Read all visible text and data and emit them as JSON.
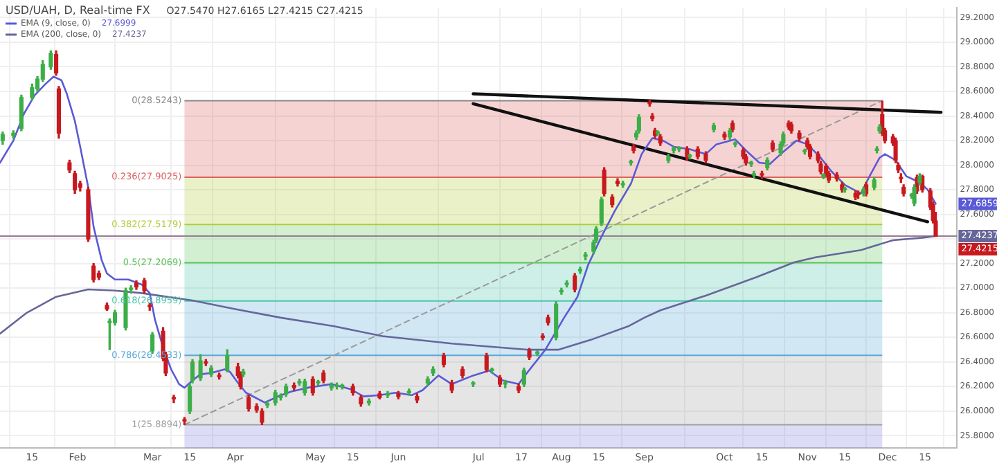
{
  "chart_data": {
    "type": "candlestick",
    "title": "USD/UAH, D, Real-time FX",
    "xlim": [
      "--01-03",
      "--12-27"
    ],
    "xticks": [
      {
        "value": "--01-15",
        "label": "15"
      },
      {
        "value": "--02-01",
        "label": "Feb"
      },
      {
        "value": "--03-01",
        "label": "Mar"
      },
      {
        "value": "--03-15",
        "label": "15"
      },
      {
        "value": "--04-01",
        "label": "Apr"
      },
      {
        "value": "--05-01",
        "label": "May"
      },
      {
        "value": "--05-15",
        "label": "15"
      },
      {
        "value": "--06-01",
        "label": "Jun"
      },
      {
        "value": "--07-01",
        "label": "Jul"
      },
      {
        "value": "--07-17",
        "label": "17"
      },
      {
        "value": "--08-01",
        "label": "Aug"
      },
      {
        "value": "--08-15",
        "label": "15"
      },
      {
        "value": "--09-01",
        "label": "Sep"
      },
      {
        "value": "--10-01",
        "label": "Oct"
      },
      {
        "value": "--10-15",
        "label": "15"
      },
      {
        "value": "--11-01",
        "label": "Nov"
      },
      {
        "value": "--11-15",
        "label": "15"
      },
      {
        "value": "--12-01",
        "label": "Dec"
      },
      {
        "value": "--12-15",
        "label": "15"
      }
    ],
    "ylim": [
      25.7,
      29.28
    ],
    "yticks": [
      {
        "value": 25.8,
        "label": "25.8000"
      },
      {
        "value": 26,
        "label": "26.0000"
      },
      {
        "value": 26.2,
        "label": "26.2000"
      },
      {
        "value": 26.4,
        "label": "26.4000"
      },
      {
        "value": 26.6,
        "label": "26.6000"
      },
      {
        "value": 26.8,
        "label": "26.8000"
      },
      {
        "value": 27,
        "label": "27.0000"
      },
      {
        "value": 27.2,
        "label": "27.2000"
      },
      {
        "value": 27.4,
        "label": null
      },
      {
        "value": 27.6,
        "label": "27.6000"
      },
      {
        "value": 27.8,
        "label": "27.8000"
      },
      {
        "value": 28,
        "label": "28.0000"
      },
      {
        "value": 28.2,
        "label": "28.2000"
      },
      {
        "value": 28.4,
        "label": "28.4000"
      },
      {
        "value": 28.6,
        "label": "28.6000"
      },
      {
        "value": 28.8,
        "label": "28.8000"
      },
      {
        "value": 29,
        "label": "29.0000"
      },
      {
        "value": 29.2,
        "label": "29.2000"
      }
    ],
    "grid": true,
    "legend": "top left",
    "annotations": [
      "O27.5470 H27.6165 L27.4215 C27.4215",
      "27.6999",
      "27.4237",
      {
        "text": "27.6859",
        "x": "--12-19",
        "y": 27.6859
      },
      {
        "text": "27.4237",
        "x": "--12-19",
        "y": 27.4237
      },
      {
        "text": "27.4215",
        "x": "--12-19",
        "y": 27.4215
      }
    ],
    "ref_lines": [
      {
        "axis": "y",
        "value": 27.4237,
        "color": "#9a7a90"
      }
    ],
    "bands": [
      {
        "axis": "y",
        "from": 28.5243,
        "to": 27.9025,
        "label": "0(28.5243)",
        "color": "#e06060"
      },
      {
        "axis": "y",
        "from": 27.9025,
        "to": 27.5179,
        "label": "0.236(27.9025)",
        "color": "#b5cc3a"
      },
      {
        "axis": "y",
        "from": 27.5179,
        "to": 27.2069,
        "label": "0.382(27.5179)",
        "color": "#5cc45c"
      },
      {
        "axis": "y",
        "from": 27.2069,
        "to": 26.8959,
        "label": "0.5(27.2069)",
        "color": "#4cc4a8"
      },
      {
        "axis": "y",
        "from": 26.8959,
        "to": 26.4533,
        "label": "0.618(26.8959)",
        "color": "#5aa8d8"
      },
      {
        "axis": "y",
        "from": 26.4533,
        "to": 25.8894,
        "label": "0.786(26.4533)",
        "color": "#a0a0a0"
      },
      {
        "axis": "y",
        "from": 25.8894,
        "to": 25.7,
        "label": "1(25.8894)",
        "color": "#8080e0"
      }
    ],
    "series": [
      {
        "type": "candlestick",
        "color": "#3cae48",
        "x": [
          "--01-04",
          "--01-08",
          "--01-11",
          "--01-15",
          "--01-17",
          "--01-19",
          "--01-22",
          "--02-13",
          "--02-15",
          "--02-19",
          "--02-21",
          "--03-01",
          "--03-15",
          "--03-16",
          "--03-19",
          "--03-23",
          "--03-29",
          "--04-04",
          "--04-13",
          "--04-16",
          "--04-18",
          "--04-20",
          "--04-25",
          "--04-27",
          "--05-02",
          "--05-07",
          "--05-09",
          "--05-11",
          "--05-21",
          "--05-28",
          "--06-05",
          "--06-12",
          "--06-14",
          "--06-29",
          "--07-06",
          "--07-11",
          "--07-18",
          "--07-23",
          "--07-30",
          "--08-01",
          "--08-03",
          "--08-08",
          "--08-10",
          "--08-13",
          "--08-14",
          "--08-16",
          "--08-24",
          "--08-27",
          "--08-29",
          "--08-30",
          "--09-06",
          "--09-10",
          "--09-12",
          "--09-14",
          "--09-18",
          "--09-27",
          "--10-03",
          "--10-05",
          "--10-11",
          "--10-12",
          "--10-17",
          "--10-22",
          "--10-23",
          "--10-31",
          "--11-07",
          "--11-15",
          "--11-22",
          "--11-26",
          "--11-27",
          "--11-28",
          "--12-10",
          "--12-11",
          "--12-13"
        ],
        "ohlc": [
          [
            28.2,
            28.27,
            28.17,
            28.25
          ],
          [
            28.24,
            28.28,
            28.22,
            28.26
          ],
          [
            28.3,
            28.57,
            28.28,
            28.55
          ],
          [
            28.55,
            28.66,
            28.53,
            28.63
          ],
          [
            28.62,
            28.72,
            28.6,
            28.7
          ],
          [
            28.7,
            28.85,
            28.68,
            28.82
          ],
          [
            28.8,
            28.93,
            28.78,
            28.91
          ],
          [
            26.72,
            26.75,
            26.5,
            26.73
          ],
          [
            26.72,
            26.82,
            26.7,
            26.8
          ],
          [
            26.68,
            27.0,
            26.66,
            26.98
          ],
          [
            26.99,
            27.02,
            26.96,
            27.0
          ],
          [
            26.49,
            26.64,
            26.47,
            26.62
          ],
          [
            26.0,
            26.22,
            25.98,
            26.2
          ],
          [
            26.25,
            26.42,
            26.23,
            26.4
          ],
          [
            26.27,
            26.46,
            26.25,
            26.41
          ],
          [
            26.3,
            26.37,
            26.28,
            26.35
          ],
          [
            26.34,
            26.5,
            26.32,
            26.45
          ],
          [
            26.3,
            26.34,
            26.28,
            26.32
          ],
          [
            26.05,
            26.08,
            26.03,
            26.06
          ],
          [
            26.07,
            26.17,
            26.05,
            26.15
          ],
          [
            26.11,
            26.14,
            26.09,
            26.12
          ],
          [
            26.14,
            26.22,
            26.12,
            26.2
          ],
          [
            26.23,
            26.26,
            26.21,
            26.24
          ],
          [
            26.15,
            26.26,
            26.13,
            26.24
          ],
          [
            26.23,
            26.25,
            26.21,
            26.23
          ],
          [
            26.19,
            26.23,
            26.17,
            26.21
          ],
          [
            26.2,
            26.23,
            26.18,
            26.21
          ],
          [
            26.2,
            26.22,
            26.18,
            26.2
          ],
          [
            26.07,
            26.1,
            26.05,
            26.08
          ],
          [
            26.13,
            26.16,
            26.11,
            26.14
          ],
          [
            26.15,
            26.18,
            26.13,
            26.16
          ],
          [
            26.23,
            26.28,
            26.21,
            26.26
          ],
          [
            26.31,
            26.36,
            26.29,
            26.34
          ],
          [
            26.22,
            26.24,
            26.2,
            26.22
          ],
          [
            26.33,
            26.35,
            26.31,
            26.33
          ],
          [
            26.22,
            26.25,
            26.19,
            26.22
          ],
          [
            26.22,
            26.35,
            26.2,
            26.33
          ],
          [
            26.47,
            26.49,
            26.45,
            26.47
          ],
          [
            26.6,
            26.89,
            26.58,
            26.87
          ],
          [
            26.97,
            27.0,
            26.95,
            26.98
          ],
          [
            27.03,
            27.06,
            27.01,
            27.04
          ],
          [
            27.14,
            27.17,
            27.12,
            27.15
          ],
          [
            27.26,
            27.29,
            27.23,
            27.26
          ],
          [
            27.3,
            27.39,
            27.28,
            27.37
          ],
          [
            27.39,
            27.5,
            27.37,
            27.48
          ],
          [
            27.53,
            27.74,
            27.51,
            27.72
          ],
          [
            27.84,
            27.87,
            27.82,
            27.85
          ],
          [
            28.02,
            28.04,
            28.0,
            28.02
          ],
          [
            28.23,
            28.28,
            28.21,
            28.26
          ],
          [
            28.28,
            28.41,
            28.26,
            28.39
          ],
          [
            28.26,
            28.28,
            28.24,
            28.26
          ],
          [
            28.04,
            28.09,
            28.02,
            28.07
          ],
          [
            28.12,
            28.15,
            28.1,
            28.14
          ],
          [
            28.13,
            28.15,
            28.11,
            28.13
          ],
          [
            28.07,
            28.09,
            28.05,
            28.07
          ],
          [
            28.29,
            28.34,
            28.27,
            28.32
          ],
          [
            28.23,
            28.3,
            28.21,
            28.28
          ],
          [
            28.17,
            28.19,
            28.15,
            28.17
          ],
          [
            28.01,
            28.03,
            27.99,
            28.01
          ],
          [
            27.92,
            27.95,
            27.9,
            27.93
          ],
          [
            27.98,
            28.06,
            27.96,
            28.04
          ],
          [
            28.1,
            28.19,
            28.08,
            28.17
          ],
          [
            28.18,
            28.27,
            28.16,
            28.25
          ],
          [
            28.11,
            28.13,
            28.09,
            28.11
          ],
          [
            27.91,
            27.93,
            27.89,
            27.91
          ],
          [
            27.8,
            27.82,
            27.78,
            27.8
          ],
          [
            27.77,
            27.82,
            27.75,
            27.8
          ],
          [
            27.82,
            27.9,
            27.8,
            27.88
          ],
          [
            28.12,
            28.15,
            28.1,
            28.13
          ],
          [
            28.28,
            28.33,
            28.26,
            28.31
          ],
          [
            27.75,
            27.77,
            27.73,
            27.75
          ],
          [
            27.69,
            27.84,
            27.67,
            27.82
          ],
          [
            27.86,
            27.93,
            27.84,
            27.91
          ]
        ]
      },
      {
        "type": "candlestick",
        "color": "#c8191e",
        "x": [
          "--01-24",
          "--01-25",
          "--01-29",
          "--01-31",
          "--02-02",
          "--02-05",
          "--02-07",
          "--02-09",
          "--02-12",
          "--02-23",
          "--02-26",
          "--02-28",
          "--03-05",
          "--03-06",
          "--03-09",
          "--03-13",
          "--03-21",
          "--03-26",
          "--04-02",
          "--04-03",
          "--04-06",
          "--04-09",
          "--04-11",
          "--04-23",
          "--04-30",
          "--05-04",
          "--05-15",
          "--05-18",
          "--05-25",
          "--06-01",
          "--06-08",
          "--06-18",
          "--06-21",
          "--06-25",
          "--07-04",
          "--07-09",
          "--07-16",
          "--07-20",
          "--07-25",
          "--07-27",
          "--08-06",
          "--08-17",
          "--08-20",
          "--08-22",
          "--08-28",
          "--09-03",
          "--09-04",
          "--09-05",
          "--09-07",
          "--09-17",
          "--09-21",
          "--09-24",
          "--10-01",
          "--10-04",
          "--10-08",
          "--10-09",
          "--10-15",
          "--10-19",
          "--10-25",
          "--10-26",
          "--10-29",
          "--11-01",
          "--11-02",
          "--11-05",
          "--11-06",
          "--11-08",
          "--11-09",
          "--11-12",
          "--11-14",
          "--11-19",
          "--11-20",
          "--11-23",
          "--11-29",
          "--11-30",
          "--12-03",
          "--12-04",
          "--12-05",
          "--12-06",
          "--12-07",
          "--12-12",
          "--12-14",
          "--12-17",
          "--12-18",
          "--12-19"
        ],
        "ohlc": [
          [
            28.9,
            28.93,
            28.73,
            28.75
          ],
          [
            28.62,
            28.64,
            28.22,
            28.26
          ],
          [
            28.02,
            28.04,
            27.94,
            27.96
          ],
          [
            27.93,
            27.95,
            27.77,
            27.8
          ],
          [
            27.85,
            27.87,
            27.79,
            27.82
          ],
          [
            27.8,
            27.82,
            27.38,
            27.4
          ],
          [
            27.18,
            27.2,
            27.05,
            27.07
          ],
          [
            27.12,
            27.14,
            27.07,
            27.09
          ],
          [
            26.86,
            26.88,
            26.82,
            26.83
          ],
          [
            27.04,
            27.06,
            26.99,
            27.01
          ],
          [
            27.06,
            27.08,
            26.96,
            26.98
          ],
          [
            26.86,
            26.88,
            26.82,
            26.85
          ],
          [
            26.65,
            26.68,
            26.41,
            26.43
          ],
          [
            26.46,
            26.48,
            26.29,
            26.31
          ],
          [
            26.1,
            26.13,
            26.07,
            26.1
          ],
          [
            25.92,
            25.95,
            25.89,
            25.92
          ],
          [
            26.4,
            26.42,
            26.37,
            26.39
          ],
          [
            26.29,
            26.31,
            26.26,
            26.28
          ],
          [
            26.36,
            26.39,
            26.27,
            26.29
          ],
          [
            26.3,
            26.32,
            26.18,
            26.2
          ],
          [
            26.11,
            26.13,
            26.0,
            26.02
          ],
          [
            26.04,
            26.06,
            25.99,
            26.01
          ],
          [
            26.0,
            26.02,
            25.89,
            25.91
          ],
          [
            26.21,
            26.23,
            26.17,
            26.19
          ],
          [
            26.26,
            26.28,
            26.13,
            26.15
          ],
          [
            26.31,
            26.33,
            26.23,
            26.25
          ],
          [
            26.2,
            26.22,
            26.13,
            26.15
          ],
          [
            26.11,
            26.13,
            26.04,
            26.06
          ],
          [
            26.14,
            26.16,
            26.1,
            26.11
          ],
          [
            26.14,
            26.16,
            26.1,
            26.12
          ],
          [
            26.12,
            26.14,
            26.07,
            26.09
          ],
          [
            26.45,
            26.47,
            26.36,
            26.38
          ],
          [
            26.23,
            26.25,
            26.15,
            26.17
          ],
          [
            26.34,
            26.36,
            26.27,
            26.29
          ],
          [
            26.45,
            26.47,
            26.32,
            26.34
          ],
          [
            26.27,
            26.29,
            26.2,
            26.22
          ],
          [
            26.2,
            26.22,
            26.15,
            26.17
          ],
          [
            26.49,
            26.51,
            26.42,
            26.44
          ],
          [
            26.61,
            26.63,
            26.58,
            26.6
          ],
          [
            26.76,
            26.78,
            26.7,
            26.72
          ],
          [
            27.1,
            27.12,
            26.97,
            26.99
          ],
          [
            27.96,
            27.98,
            27.75,
            27.77
          ],
          [
            27.74,
            27.76,
            27.66,
            27.68
          ],
          [
            27.87,
            27.89,
            27.83,
            27.85
          ],
          [
            28.15,
            28.17,
            28.1,
            28.12
          ],
          [
            28.51,
            28.53,
            28.48,
            28.5
          ],
          [
            28.4,
            28.42,
            28.36,
            28.38
          ],
          [
            28.28,
            28.3,
            28.22,
            28.24
          ],
          [
            28.23,
            28.25,
            28.16,
            28.18
          ],
          [
            28.13,
            28.15,
            28.04,
            28.06
          ],
          [
            28.13,
            28.15,
            28.05,
            28.07
          ],
          [
            28.09,
            28.11,
            28.02,
            28.04
          ],
          [
            28.25,
            28.27,
            28.21,
            28.23
          ],
          [
            28.34,
            28.36,
            28.27,
            28.29
          ],
          [
            28.12,
            28.14,
            28.05,
            28.07
          ],
          [
            28.07,
            28.09,
            28.0,
            28.02
          ],
          [
            27.92,
            27.95,
            27.89,
            27.92
          ],
          [
            28.18,
            28.2,
            28.11,
            28.13
          ],
          [
            28.34,
            28.36,
            28.29,
            28.31
          ],
          [
            28.33,
            28.35,
            28.26,
            28.28
          ],
          [
            28.26,
            28.28,
            28.2,
            28.22
          ],
          [
            28.2,
            28.22,
            28.13,
            28.15
          ],
          [
            28.15,
            28.17,
            28.05,
            28.07
          ],
          [
            28.09,
            28.11,
            28.02,
            28.04
          ],
          [
            28.01,
            28.03,
            27.93,
            27.95
          ],
          [
            27.99,
            28.01,
            27.91,
            27.93
          ],
          [
            27.93,
            27.95,
            27.86,
            27.88
          ],
          [
            27.92,
            27.94,
            27.87,
            27.89
          ],
          [
            27.84,
            27.86,
            27.78,
            27.8
          ],
          [
            27.77,
            27.79,
            27.72,
            27.74
          ],
          [
            27.77,
            27.79,
            27.73,
            27.76
          ],
          [
            27.84,
            27.86,
            27.75,
            27.77
          ],
          [
            28.41,
            28.52,
            28.24,
            28.26
          ],
          [
            28.28,
            28.3,
            28.18,
            28.2
          ],
          [
            28.23,
            28.25,
            28.16,
            28.18
          ],
          [
            28.2,
            28.22,
            28.02,
            28.04
          ],
          [
            28.0,
            28.02,
            27.94,
            27.96
          ],
          [
            27.9,
            27.93,
            27.86,
            27.89
          ],
          [
            27.82,
            27.84,
            27.75,
            27.77
          ],
          [
            27.9,
            27.92,
            27.77,
            27.79
          ],
          [
            27.91,
            27.92,
            27.78,
            27.8
          ],
          [
            27.79,
            27.81,
            27.64,
            27.66
          ],
          [
            27.68,
            27.7,
            27.53,
            27.55
          ],
          [
            27.547,
            27.6165,
            27.4215,
            27.4215
          ]
        ]
      },
      {
        "type": "line",
        "name": "EMA (9, close, 0)",
        "color": "#5a5ad6",
        "x": [
          "--01-03",
          "--01-08",
          "--01-12",
          "--01-16",
          "--01-20",
          "--01-23",
          "--01-26",
          "--01-28",
          "--01-31",
          "--02-02",
          "--02-05",
          "--02-07",
          "--02-10",
          "--02-12",
          "--02-15",
          "--02-20",
          "--02-25",
          "--02-28",
          "--03-02",
          "--03-05",
          "--03-08",
          "--03-11",
          "--03-13",
          "--03-16",
          "--03-19",
          "--03-23",
          "--03-28",
          "--03-30",
          "--04-02",
          "--04-05",
          "--04-12",
          "--04-17",
          "--04-22",
          "--04-28",
          "--05-07",
          "--05-14",
          "--05-19",
          "--05-25",
          "--05-31",
          "--06-06",
          "--06-10",
          "--06-16",
          "--06-21",
          "--06-29",
          "--07-05",
          "--07-10",
          "--07-16",
          "--07-18",
          "--07-26",
          "--08-02",
          "--08-07",
          "--08-11",
          "--08-16",
          "--08-21",
          "--08-27",
          "--08-31",
          "--09-04",
          "--09-08",
          "--09-12",
          "--09-18",
          "--09-24",
          "--09-28",
          "--10-05",
          "--10-09",
          "--10-14",
          "--10-18",
          "--10-22",
          "--10-28",
          "--11-01",
          "--11-06",
          "--11-10",
          "--11-15",
          "--11-21",
          "--11-24",
          "--11-28",
          "--11-30",
          "--12-04",
          "--12-08",
          "--12-13",
          "--12-16",
          "--12-19"
        ],
        "values": [
          28.02,
          28.2,
          28.42,
          28.57,
          28.66,
          28.72,
          28.69,
          28.58,
          28.36,
          28.15,
          27.82,
          27.5,
          27.23,
          27.12,
          27.07,
          27.07,
          27.03,
          26.96,
          26.74,
          26.52,
          26.34,
          26.22,
          26.19,
          26.25,
          26.3,
          26.31,
          26.34,
          26.32,
          26.23,
          26.15,
          26.07,
          26.12,
          26.16,
          26.19,
          26.22,
          26.18,
          26.12,
          26.13,
          26.15,
          26.13,
          26.17,
          26.29,
          26.22,
          26.29,
          26.33,
          26.25,
          26.22,
          26.28,
          26.5,
          26.76,
          26.93,
          27.19,
          27.42,
          27.63,
          27.85,
          28.09,
          28.22,
          28.2,
          28.15,
          28.13,
          28.09,
          28.17,
          28.21,
          28.12,
          28.02,
          28.01,
          28.09,
          28.2,
          28.17,
          28.06,
          27.95,
          27.84,
          27.77,
          27.9,
          28.06,
          28.09,
          28.04,
          27.91,
          27.86,
          27.8,
          27.6859
        ]
      },
      {
        "type": "line",
        "name": "EMA (200, close, 0)",
        "color": "#66669a",
        "x": [
          "--01-03",
          "--01-13",
          "--01-24",
          "--02-05",
          "--02-15",
          "--02-25",
          "--03-16",
          "--04-01",
          "--04-18",
          "--05-08",
          "--05-26",
          "--06-21",
          "--07-19",
          "--07-31",
          "--08-12",
          "--08-26",
          "--09-01",
          "--09-07",
          "--09-24",
          "--10-13",
          "--10-27",
          "--11-04",
          "--11-21",
          "--12-03",
          "--12-14",
          "--12-19"
        ],
        "values": [
          26.63,
          26.8,
          26.93,
          26.99,
          26.98,
          26.96,
          26.9,
          26.83,
          26.76,
          26.69,
          26.61,
          26.55,
          26.5,
          26.5,
          26.58,
          26.69,
          26.76,
          26.82,
          26.94,
          27.09,
          27.21,
          27.25,
          27.31,
          27.39,
          27.41,
          27.4237
        ]
      },
      {
        "type": "line",
        "color": "#111111",
        "x": [
          "--06-29",
          "--12-21"
        ],
        "values": [
          28.58,
          28.43
        ]
      },
      {
        "type": "line",
        "color": "#111111",
        "x": [
          "--06-29",
          "--12-16"
        ],
        "values": [
          28.5,
          27.54
        ]
      },
      {
        "type": "line",
        "color": "#9a9a9a",
        "line_style": "dashed",
        "x": [
          "--03-13",
          "--11-29"
        ],
        "values": [
          25.8894,
          28.5243
        ]
      }
    ]
  }
}
